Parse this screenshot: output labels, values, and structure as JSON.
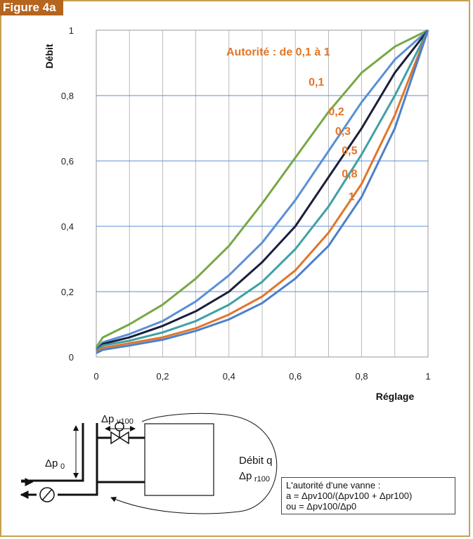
{
  "figure_label": "Figure 4a",
  "chart_data": {
    "type": "line",
    "xlabel": "Réglage",
    "ylabel": "Débit",
    "xlim": [
      0,
      1
    ],
    "ylim": [
      0,
      1
    ],
    "x_ticks": [
      "0",
      "0,2",
      "0,4",
      "0,6",
      "0,8",
      "1"
    ],
    "y_ticks": [
      "0",
      "0,2",
      "0,4",
      "0,6",
      "0,8",
      "1"
    ],
    "grid": true,
    "title_annotation": "Autorité : de 0,1 à 1",
    "series": [
      {
        "name": "0,1",
        "color": "#77a844",
        "x": [
          0,
          0.02,
          0.1,
          0.2,
          0.3,
          0.4,
          0.5,
          0.6,
          0.7,
          0.8,
          0.9,
          1.0
        ],
        "y": [
          0.03,
          0.06,
          0.1,
          0.16,
          0.24,
          0.34,
          0.47,
          0.61,
          0.75,
          0.87,
          0.95,
          1.0
        ]
      },
      {
        "name": "0,2",
        "color": "#5b8fd6",
        "x": [
          0,
          0.02,
          0.1,
          0.2,
          0.3,
          0.4,
          0.5,
          0.6,
          0.7,
          0.8,
          0.9,
          1.0
        ],
        "y": [
          0.025,
          0.045,
          0.07,
          0.11,
          0.17,
          0.25,
          0.35,
          0.48,
          0.63,
          0.78,
          0.91,
          1.0
        ]
      },
      {
        "name": "0,3",
        "color": "#1b1e3a",
        "x": [
          0,
          0.02,
          0.1,
          0.2,
          0.3,
          0.4,
          0.5,
          0.6,
          0.7,
          0.8,
          0.9,
          1.0
        ],
        "y": [
          0.02,
          0.04,
          0.06,
          0.095,
          0.14,
          0.2,
          0.29,
          0.4,
          0.55,
          0.7,
          0.87,
          1.0
        ]
      },
      {
        "name": "0,5",
        "color": "#3fa0a4",
        "x": [
          0,
          0.02,
          0.1,
          0.2,
          0.3,
          0.4,
          0.5,
          0.6,
          0.7,
          0.8,
          0.9,
          1.0
        ],
        "y": [
          0.02,
          0.035,
          0.05,
          0.075,
          0.11,
          0.16,
          0.23,
          0.33,
          0.46,
          0.62,
          0.8,
          1.0
        ]
      },
      {
        "name": "0,8",
        "color": "#e0762a",
        "x": [
          0,
          0.02,
          0.1,
          0.2,
          0.3,
          0.4,
          0.5,
          0.6,
          0.7,
          0.8,
          0.9,
          1.0
        ],
        "y": [
          0.015,
          0.028,
          0.042,
          0.06,
          0.088,
          0.13,
          0.185,
          0.265,
          0.38,
          0.53,
          0.74,
          1.0
        ]
      },
      {
        "name": "1",
        "color": "#4d7fcc",
        "x": [
          0,
          0.02,
          0.1,
          0.2,
          0.3,
          0.4,
          0.5,
          0.6,
          0.7,
          0.8,
          0.9,
          1.0
        ],
        "y": [
          0.012,
          0.022,
          0.035,
          0.053,
          0.08,
          0.115,
          0.165,
          0.24,
          0.34,
          0.49,
          0.7,
          1.0
        ]
      }
    ],
    "curve_labels": [
      {
        "text": "0,1",
        "x": 0.64,
        "y": 0.83
      },
      {
        "text": "0,2",
        "x": 0.7,
        "y": 0.74
      },
      {
        "text": "0,3",
        "x": 0.72,
        "y": 0.68
      },
      {
        "text": "0,5",
        "x": 0.74,
        "y": 0.62
      },
      {
        "text": "0,8",
        "x": 0.74,
        "y": 0.55
      },
      {
        "text": "1",
        "x": 0.76,
        "y": 0.48
      }
    ]
  },
  "schematic": {
    "dp_v100": "Δp",
    "dp_v100_sub": "v100",
    "dp_0": "Δp",
    "dp_0_sub": "0",
    "flow_label": "Débit q",
    "dp_r100": "Δp",
    "dp_r100_sub": "r100"
  },
  "note": {
    "line1": "L'autorité d'une vanne :",
    "line2": "a = Δpv100/(Δpv100 + Δpr100)",
    "line3": "ou = Δpv100/Δp0"
  }
}
